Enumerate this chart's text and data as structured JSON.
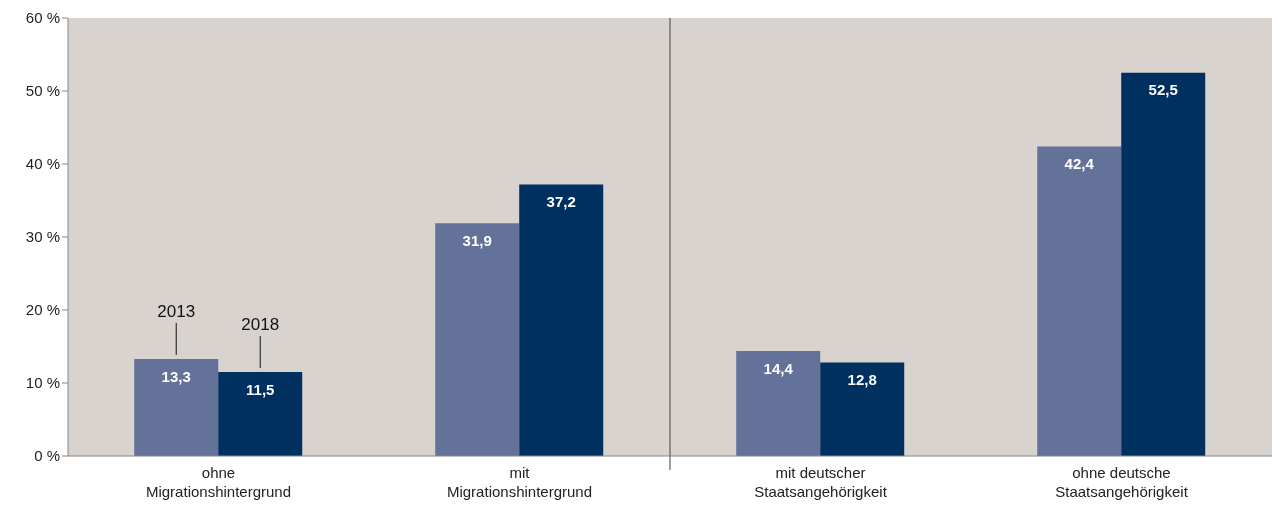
{
  "chart_data": {
    "type": "bar",
    "categories": [
      "ohne Migrationshintergrund",
      "mit Migrationshintergrund",
      "mit deutscher Staatsangehörigkeit",
      "ohne deutsche Staatsangehörigkeit"
    ],
    "series": [
      {
        "name": "2013",
        "color": "#647299",
        "values": [
          13.3,
          31.9,
          14.4,
          42.4
        ],
        "value_labels": [
          "13,3",
          "31,9",
          "14,4",
          "42,4"
        ]
      },
      {
        "name": "2018",
        "color": "#003060",
        "values": [
          11.5,
          37.2,
          12.8,
          52.5
        ],
        "value_labels": [
          "11,5",
          "37,2",
          "12,8",
          "52,5"
        ]
      }
    ],
    "ylim": [
      0,
      60
    ],
    "yticks": [
      {
        "value": 0,
        "label": "0 %"
      },
      {
        "value": 10,
        "label": "10 %"
      },
      {
        "value": 20,
        "label": "20 %"
      },
      {
        "value": 30,
        "label": "30 %"
      },
      {
        "value": 40,
        "label": "40 %"
      },
      {
        "value": 50,
        "label": "50 %"
      },
      {
        "value": 60,
        "label": "60 %"
      }
    ]
  }
}
